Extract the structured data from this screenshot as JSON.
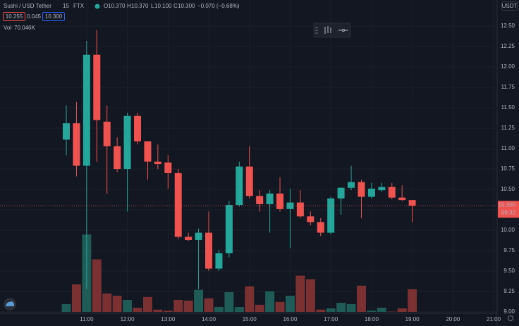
{
  "chart_data": {
    "type": "candlestick",
    "header": {
      "symbol": "Sushi / USD Tether",
      "interval": "15",
      "exchange": "FTX",
      "o_key": "O",
      "open": "10.370",
      "h_key": "H",
      "high": "10.370",
      "l_key": "L",
      "low": "10.100",
      "c_key": "C",
      "close": "10.300",
      "change": "−0.070 (−0.68%)",
      "bid": "10.255",
      "spread": "0.045",
      "ask": "10.300",
      "vol_key": "Vol",
      "vol_value": "70.046K"
    },
    "currency": "USDT",
    "last_price_label": "10.300",
    "countdown": "09:32",
    "last_price": 10.3,
    "xticks": [
      "11:00",
      "12:00",
      "13:00",
      "14:00",
      "15:00",
      "16:00",
      "17:00",
      "18:00",
      "19:00",
      "20:00",
      "21:00"
    ],
    "open": [
      11.11,
      11.31,
      10.79,
      12.15,
      11.33,
      11.03,
      10.75,
      11.4,
      11.09,
      10.84,
      10.83,
      10.7,
      9.92,
      9.88,
      9.97,
      9.53,
      9.72,
      10.31,
      10.78,
      10.42,
      10.32,
      10.45,
      10.26,
      10.34,
      10.17,
      10.1,
      9.97,
      10.39,
      10.52,
      10.59,
      10.41,
      10.49,
      10.53,
      10.4,
      10.37
    ],
    "high": [
      11.53,
      11.57,
      12.32,
      12.45,
      11.53,
      11.14,
      11.44,
      11.44,
      11.09,
      11.05,
      10.92,
      10.75,
      9.97,
      10.02,
      10.23,
      9.76,
      10.36,
      10.84,
      11.03,
      10.49,
      10.49,
      10.65,
      10.51,
      10.49,
      10.23,
      10.15,
      10.41,
      10.53,
      10.79,
      10.62,
      10.58,
      10.58,
      10.58,
      10.55,
      10.37
    ],
    "low": [
      10.92,
      10.66,
      9.28,
      10.84,
      10.45,
      10.71,
      10.23,
      11.05,
      10.62,
      10.75,
      10.51,
      9.89,
      9.87,
      9.28,
      9.5,
      9.5,
      9.67,
      10.29,
      10.39,
      10.23,
      9.97,
      10.23,
      9.78,
      10.15,
      10.06,
      9.93,
      9.95,
      10.19,
      10.49,
      10.15,
      10.39,
      10.47,
      10.38,
      10.36,
      10.1
    ],
    "close": [
      11.31,
      10.79,
      12.15,
      11.35,
      11.03,
      10.75,
      11.4,
      11.09,
      10.84,
      10.81,
      10.7,
      9.92,
      9.88,
      9.97,
      9.53,
      9.72,
      10.31,
      10.78,
      10.42,
      10.32,
      10.45,
      10.26,
      10.34,
      10.17,
      10.1,
      9.97,
      10.39,
      10.52,
      10.59,
      10.41,
      10.51,
      10.53,
      10.4,
      10.37,
      10.3
    ],
    "volume": [
      24000,
      85000,
      239000,
      162000,
      57000,
      50000,
      37000,
      13000,
      46000,
      7000,
      4000,
      37000,
      35000,
      68000,
      42000,
      15000,
      61000,
      15000,
      79000,
      22000,
      64000,
      31000,
      50000,
      112000,
      101000,
      7000,
      11000,
      28000,
      24000,
      81000,
      4000,
      13000,
      1000,
      11000,
      70046
    ],
    "up_color": "#26a69a",
    "down_color": "#ef5350",
    "up_volume_color": "#1f5c58",
    "down_volume_color": "#7b3032",
    "ylim": [
      9,
      12.82
    ],
    "yticks": [
      {
        "value": 9,
        "label": "9.00"
      },
      9.25,
      {
        "value": 9.5,
        "label": "9.50"
      },
      9.75,
      {
        "value": 10,
        "label": "10.00"
      },
      10.25,
      {
        "value": 10.5,
        "label": "10.50"
      },
      10.75,
      {
        "value": 11,
        "label": "11.00"
      },
      11.25,
      {
        "value": 11.5,
        "label": "11.50"
      },
      11.75,
      {
        "value": 12,
        "label": "12.00"
      },
      12.25,
      {
        "value": 12.5,
        "label": "12.50"
      }
    ],
    "grid": true
  }
}
